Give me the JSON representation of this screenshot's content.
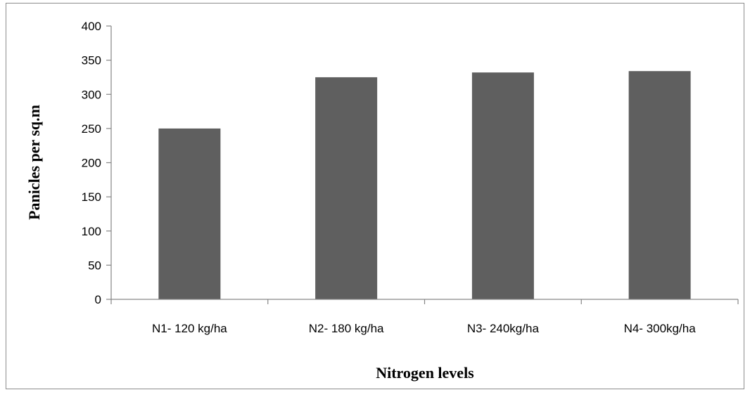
{
  "chart_data": {
    "type": "bar",
    "categories": [
      "N1- 120 kg/ha",
      "N2- 180 kg/ha",
      "N3- 240kg/ha",
      "N4- 300kg/ha"
    ],
    "values": [
      250,
      325,
      332,
      334
    ],
    "xlabel": "Nitrogen levels",
    "ylabel": "Panicles per sq.m",
    "ylim": [
      0,
      400
    ],
    "yticks": [
      0,
      50,
      100,
      150,
      200,
      250,
      300,
      350,
      400
    ],
    "grid": false,
    "legend": "none",
    "bar_color": "#5f5f5f",
    "axis_color": "#868686"
  }
}
